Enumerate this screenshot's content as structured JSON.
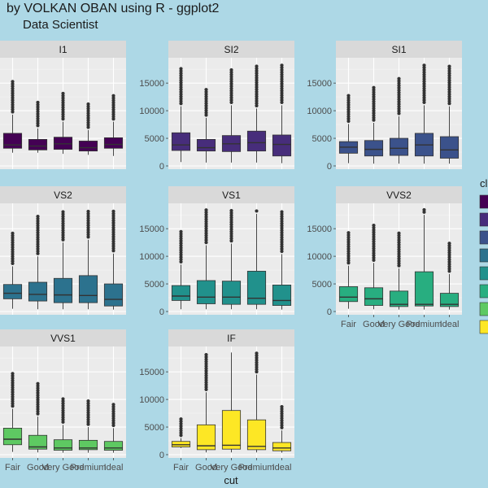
{
  "chart_data": {
    "type": "boxplot",
    "title": "by VOLKAN OBAN using R - ggplot2",
    "subtitle": "Data Scientist",
    "xlabel": "cut",
    "ylabel": "",
    "categories": [
      "Fair",
      "Good",
      "Very Good",
      "Premium",
      "Ideal"
    ],
    "yticks": [
      0,
      5000,
      10000,
      15000
    ],
    "legend_title": "cl",
    "facets": [
      {
        "name": "I1",
        "color": "#440154",
        "ylim": [
          0,
          19000
        ],
        "stats": [
          [
            2400,
            3200,
            3800,
            5900,
            9300
          ],
          [
            2400,
            2900,
            3600,
            4800,
            6800
          ],
          [
            2200,
            3000,
            4000,
            5200,
            8000
          ],
          [
            2000,
            2700,
            3300,
            4500,
            6500
          ],
          [
            1800,
            3200,
            3900,
            5100,
            8000
          ]
        ]
      },
      {
        "name": "SI2",
        "color": "#472D7B",
        "ylim": [
          0,
          19000
        ],
        "stats": [
          [
            700,
            2800,
            3800,
            6000,
            10800
          ],
          [
            600,
            2700,
            3300,
            4800,
            8700
          ],
          [
            600,
            2600,
            4000,
            5500,
            11000
          ],
          [
            600,
            2700,
            4200,
            6300,
            10400
          ],
          [
            500,
            1800,
            3900,
            5600,
            11000
          ]
        ]
      },
      {
        "name": "SI1",
        "color": "#3B528B",
        "ylim": [
          0,
          19000
        ],
        "stats": [
          [
            500,
            2300,
            3400,
            4400,
            7600
          ],
          [
            400,
            1800,
            3000,
            4600,
            7800
          ],
          [
            400,
            1900,
            3200,
            5000,
            9000
          ],
          [
            400,
            1800,
            3800,
            5900,
            11000
          ],
          [
            400,
            1400,
            2900,
            5300,
            10800
          ]
        ]
      },
      {
        "name": "VS2",
        "color": "#2C728E",
        "ylim": [
          0,
          19000
        ],
        "stats": [
          [
            500,
            2300,
            3300,
            4900,
            8200
          ],
          [
            400,
            1900,
            3100,
            5300,
            10000
          ],
          [
            400,
            1600,
            3000,
            6000,
            12500
          ],
          [
            400,
            1600,
            2900,
            6500,
            13000
          ],
          [
            350,
            1000,
            2200,
            5000,
            10500
          ]
        ]
      },
      {
        "name": "VS1",
        "color": "#21918C",
        "ylim": [
          0,
          19000
        ],
        "stats": [
          [
            400,
            2000,
            2800,
            4700,
            8500
          ],
          [
            400,
            1400,
            2600,
            5600,
            12000
          ],
          [
            400,
            1300,
            2600,
            5500,
            12300
          ],
          [
            400,
            1300,
            2400,
            7300,
            17700
          ],
          [
            350,
            1100,
            2000,
            4800,
            10400
          ]
        ]
      },
      {
        "name": "VVS2",
        "color": "#28AE80",
        "ylim": [
          0,
          19000
        ],
        "stats": [
          [
            500,
            1800,
            2600,
            4500,
            8300
          ],
          [
            400,
            1100,
            2300,
            4300,
            8800
          ],
          [
            350,
            900,
            1300,
            3700,
            7800
          ],
          [
            350,
            1000,
            1300,
            7200,
            17500
          ],
          [
            350,
            900,
            1300,
            3300,
            6800
          ]
        ]
      },
      {
        "name": "VVS1",
        "color": "#5EC962",
        "ylim": [
          0,
          19000
        ],
        "stats": [
          [
            500,
            1800,
            2800,
            4800,
            8300
          ],
          [
            400,
            1000,
            1400,
            3500,
            6900
          ],
          [
            350,
            800,
            1200,
            2700,
            5400
          ],
          [
            350,
            900,
            1200,
            2600,
            5000
          ],
          [
            350,
            800,
            1200,
            2400,
            4800
          ]
        ]
      },
      {
        "name": "IF",
        "color": "#FDE725",
        "ylim": [
          0,
          19000
        ],
        "stats": [
          [
            1200,
            1400,
            1800,
            2400,
            3000
          ],
          [
            400,
            900,
            1600,
            5400,
            11300
          ],
          [
            400,
            1000,
            1700,
            8000,
            18500
          ],
          [
            400,
            900,
            1500,
            6300,
            14500
          ],
          [
            350,
            700,
            1200,
            2200,
            4400
          ]
        ]
      }
    ],
    "legend_colors": [
      "#440154",
      "#472D7B",
      "#3B528B",
      "#2C728E",
      "#21918C",
      "#28AE80",
      "#5EC962",
      "#FDE725"
    ]
  }
}
